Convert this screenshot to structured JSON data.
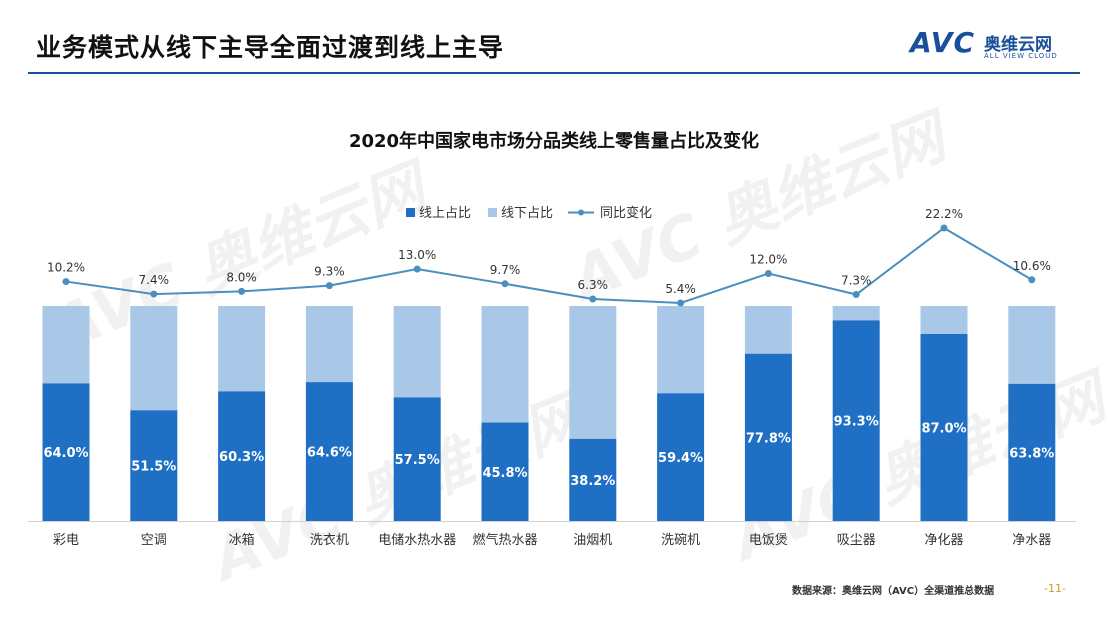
{
  "header": {
    "title": "业务模式从线下主导全面过渡到线上主导",
    "brand_avc": "AVC",
    "brand_cn": "奥维云网",
    "brand_en": "ALL VIEW CLOUD"
  },
  "watermark": "AVC 奥维云网",
  "colors": {
    "online": "#1f6fc5",
    "offline": "#a9c8e8",
    "yoy_line": "#4b8fbe",
    "brand": "#1a4f9c"
  },
  "chart_data": {
    "type": "bar",
    "stacked": true,
    "title": "2020年中国家电市场分品类线上零售量占比及变化",
    "legend_position": "top-center",
    "categories": [
      "彩电",
      "空调",
      "冰箱",
      "洗衣机",
      "电储水热水器",
      "燃气热水器",
      "油烟机",
      "洗碗机",
      "电饭煲",
      "吸尘器",
      "净化器",
      "净水器"
    ],
    "series": [
      {
        "name": "线上占比",
        "values": [
          64.0,
          51.5,
          60.3,
          64.6,
          57.5,
          45.8,
          38.2,
          59.4,
          77.8,
          93.3,
          87.0,
          63.8
        ],
        "labels": [
          "64.0%",
          "51.5%",
          "60.3%",
          "64.6%",
          "57.5%",
          "45.8%",
          "38.2%",
          "59.4%",
          "77.8%",
          "93.3%",
          "87.0%",
          "63.8%"
        ]
      },
      {
        "name": "线下占比",
        "values": [
          36.0,
          48.5,
          39.7,
          35.4,
          42.5,
          54.2,
          61.8,
          40.6,
          22.2,
          6.7,
          13.0,
          36.2
        ]
      },
      {
        "name": "同比变化",
        "type": "line",
        "values": [
          10.2,
          7.4,
          8.0,
          9.3,
          13.0,
          9.7,
          6.3,
          5.4,
          12.0,
          7.3,
          22.2,
          10.6
        ],
        "labels": [
          "10.2%",
          "7.4%",
          "8.0%",
          "9.3%",
          "13.0%",
          "9.7%",
          "6.3%",
          "5.4%",
          "12.0%",
          "7.3%",
          "22.2%",
          "10.6%"
        ]
      }
    ],
    "ylim": [
      0,
      100
    ],
    "grid": false
  },
  "footer": {
    "source": "数据来源：奥维云网（AVC）全渠道推总数据",
    "page": "-11-"
  }
}
